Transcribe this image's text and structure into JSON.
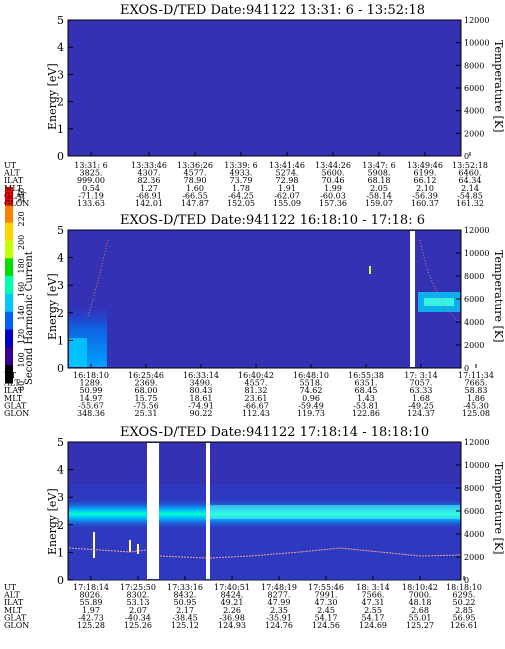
{
  "colorbar": {
    "title": "Second Harmonic Current",
    "ticks": [
      "240",
      "220",
      "200",
      "180",
      "160",
      "140",
      "120",
      "100",
      "80"
    ],
    "colors": [
      "#ff0000",
      "#ff7f00",
      "#ffd700",
      "#c8ff00",
      "#00e000",
      "#00ffb0",
      "#00c8ff",
      "#0060ff",
      "#0000c8",
      "#3a0090",
      "#000000"
    ]
  },
  "chart_data": [
    {
      "type": "heatmap",
      "title": "EXOS-D/TED   Date:941122  13:31: 6 - 13:52:18",
      "ylabel": "Energy [eV]",
      "ylabel_right": "Temperature [K]",
      "ylim": [
        0,
        5
      ],
      "ylim_right": [
        0,
        12000
      ],
      "yticks": [
        "0",
        "1",
        "2",
        "3",
        "4",
        "5"
      ],
      "yticks_right": [
        "0",
        "2000",
        "4000",
        "6000",
        "8000",
        "10000",
        "12000"
      ],
      "background_color": "#3030b0",
      "orbit_rows": [
        "UT",
        "ALT",
        "ILAT",
        "MLT",
        "GLAT",
        "GLON"
      ],
      "orbit": [
        [
          "13:31: 6",
          "3825.",
          "999.00",
          "0.54",
          "-71.19",
          "133.63"
        ],
        [
          "13:33:46",
          "4307.",
          "82.36",
          "1.27",
          "-68.91",
          "142.01"
        ],
        [
          "13:36:26",
          "4577.",
          "78.90",
          "1.60",
          "-66.55",
          "147.87"
        ],
        [
          "13:39: 6",
          "4933.",
          "73.79",
          "1.78",
          "-64.25",
          "152.05"
        ],
        [
          "13:41:46",
          "5274.",
          "72.98",
          "1.91",
          "-62.07",
          "155.09"
        ],
        [
          "13:44:26",
          "5600.",
          "70.46",
          "1.99",
          "-60.03",
          "157.36"
        ],
        [
          "13:47: 6",
          "5908.",
          "68.18",
          "2.05",
          "-58.14",
          "159.07"
        ],
        [
          "13:49:46",
          "6199.",
          "66.12",
          "2.10",
          "-56.39",
          "160.37"
        ],
        [
          "13:52:18",
          "6460.",
          "64.34",
          "2.14",
          "-54.85",
          "161.32"
        ]
      ],
      "features": []
    },
    {
      "type": "heatmap",
      "title": "EXOS-D/TED   Date:941122  16:18:10 - 17:18: 6",
      "ylabel": "Energy [eV]",
      "ylabel_right": "Temperature [K]",
      "ylim": [
        0,
        5
      ],
      "ylim_right": [
        0,
        12000
      ],
      "yticks": [
        "0",
        "1",
        "2",
        "3",
        "4",
        "5"
      ],
      "yticks_right": [
        "0",
        "2000",
        "4000",
        "6000",
        "8000",
        "10000",
        "12000"
      ],
      "background_color": "#3030b0",
      "orbit_rows": [
        "UT",
        "ALT",
        "ILAT",
        "MLT",
        "GLAT",
        "GLON"
      ],
      "orbit": [
        [
          "16:18:10",
          "1289.",
          "50.99",
          "14.97",
          "-55.67",
          "348.36"
        ],
        [
          "16:25:46",
          "2369.",
          "68.00",
          "15.75",
          "-75.56",
          "25.31"
        ],
        [
          "16:33:14",
          "3490.",
          "80.43",
          "18.61",
          "-74.91",
          "90.22"
        ],
        [
          "16:40:42",
          "4557.",
          "81.32",
          "23.61",
          "-66.67",
          "112.43"
        ],
        [
          "16:48:10",
          "5518.",
          "74.62",
          "0.96",
          "-59.49",
          "119.73"
        ],
        [
          "16:55:38",
          "6351.",
          "68.45",
          "1.43",
          "-53.81",
          "122.86"
        ],
        [
          "17: 3:14",
          "7057.",
          "63.33",
          "1.68",
          "-49.25",
          "124.37"
        ],
        [
          "17:11:34",
          "7665.",
          "58.83",
          "1.86",
          "-45.30",
          "125.08"
        ]
      ],
      "features": [
        "low-energy enhancement 16:18-16:25",
        "data gap near 17:09",
        "band near 2.5 eV at 17:15"
      ]
    },
    {
      "type": "heatmap",
      "title": "EXOS-D/TED   Date:941122  17:18:14 - 18:18:10",
      "ylabel": "Energy [eV]",
      "ylabel_right": "Temperature [K]",
      "ylim": [
        0,
        5
      ],
      "ylim_right": [
        0,
        12000
      ],
      "yticks": [
        "0",
        "1",
        "2",
        "3",
        "4",
        "5"
      ],
      "yticks_right": [
        "0",
        "2000",
        "4000",
        "6000",
        "8000",
        "10000",
        "12000"
      ],
      "background_color": "#3030b0",
      "orbit_rows": [
        "UT",
        "ALT",
        "ILAT",
        "MLT",
        "GLAT",
        "GLON"
      ],
      "orbit": [
        [
          "17:18:14",
          "8026.",
          "55.89",
          "1.97",
          "-42.73",
          "125.28"
        ],
        [
          "17:25:50",
          "8302.",
          "53.13",
          "2.07",
          "-40.34",
          "125.26"
        ],
        [
          "17:33:16",
          "8432.",
          "50.95",
          "2.17",
          "-38.45",
          "125.12"
        ],
        [
          "17:40:51",
          "8424.",
          "49.21",
          "2.26",
          "-36.98",
          "124.93"
        ],
        [
          "17:48:19",
          "8277.",
          "47.99",
          "2.35",
          "-35.91",
          "124.76"
        ],
        [
          "17:55:46",
          "7991.",
          "47.30",
          "2.45",
          "54.17",
          "124.56"
        ],
        [
          "18: 3:14",
          "7566.",
          "47.31",
          "2.55",
          "54.17",
          "124.69"
        ],
        [
          "18:10:42",
          "7000.",
          "48.18",
          "2.68",
          "55.01",
          "125.27"
        ],
        [
          "18:18:10",
          "6295.",
          "50.22",
          "2.85",
          "56.95",
          "126.61"
        ]
      ],
      "features": [
        "persistent band near 2.5 eV",
        "data gaps near 17:27 and 17:40",
        "temperature trace near 1-1.5 eV"
      ]
    }
  ]
}
